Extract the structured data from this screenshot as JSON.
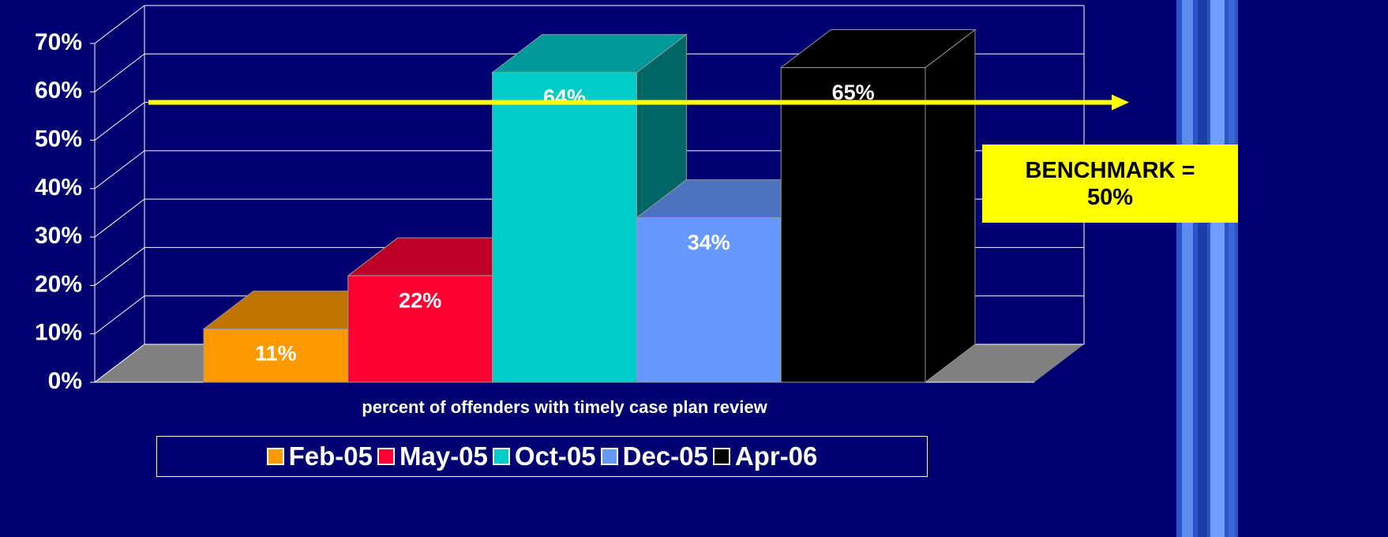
{
  "chart_data": {
    "type": "bar3d",
    "categories": [
      "percent of offenders with timely case plan review"
    ],
    "series": [
      {
        "name": "Feb-05",
        "color": "#ff9900",
        "values": [
          11
        ],
        "value_labels": [
          "11%"
        ]
      },
      {
        "name": "May-05",
        "color": "#ff0033",
        "values": [
          22
        ],
        "value_labels": [
          "22%"
        ]
      },
      {
        "name": "Oct-05",
        "color": "#00cccc",
        "values": [
          64
        ],
        "value_labels": [
          "64%"
        ]
      },
      {
        "name": "Dec-05",
        "color": "#6699ff",
        "values": [
          34
        ],
        "value_labels": [
          "34%"
        ]
      },
      {
        "name": "Apr-06",
        "color": "#000000",
        "values": [
          65
        ],
        "value_labels": [
          "65%"
        ]
      }
    ],
    "ylim": [
      0,
      70
    ],
    "yticks": [
      {
        "value": 0,
        "label": "0%"
      },
      {
        "value": 10,
        "label": "10%"
      },
      {
        "value": 20,
        "label": "20%"
      },
      {
        "value": 30,
        "label": "30%"
      },
      {
        "value": 40,
        "label": "40%"
      },
      {
        "value": 50,
        "label": "50%"
      },
      {
        "value": 60,
        "label": "60%"
      },
      {
        "value": 70,
        "label": "70%"
      }
    ],
    "grid": true,
    "benchmark": {
      "value": 50,
      "label": "BENCHMARK = 50%",
      "color": "#ffff00"
    }
  }
}
